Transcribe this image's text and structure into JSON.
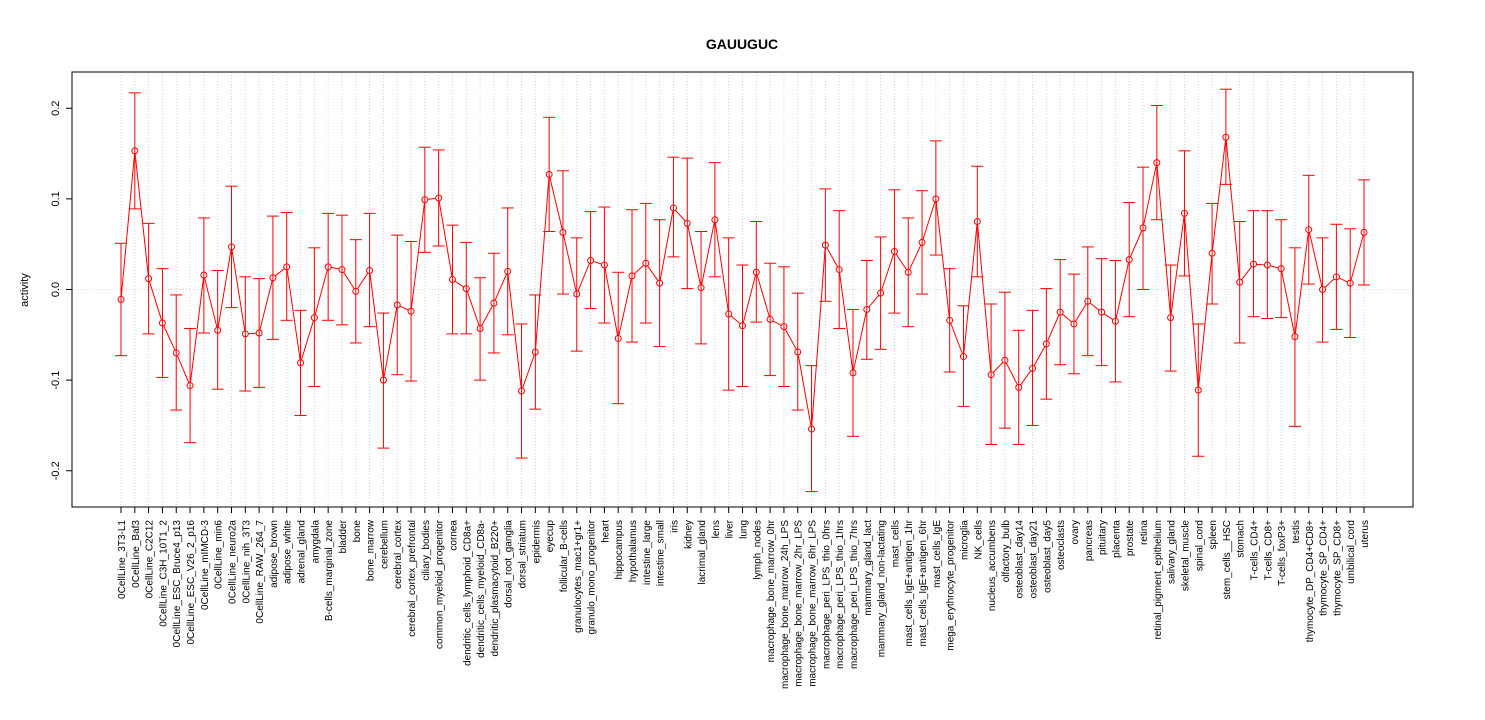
{
  "chart_data": {
    "type": "line",
    "title": "GAUUGUC",
    "xlabel": "",
    "ylabel": "activity",
    "ylim": [
      -0.24,
      0.24
    ],
    "yticks": [
      -0.2,
      -0.1,
      0.0,
      0.1,
      0.2
    ],
    "ytick_labels": [
      "-0.2",
      "-0.1",
      "0.0",
      "0.1",
      "0.2"
    ],
    "grid": "vertical dotted per category, dotted horizontal at zero",
    "colors": {
      "series": "#ff0000",
      "grid": "#cccccc",
      "axis": "#000000"
    },
    "categories": [
      "0CellLine_3T3-L1",
      "0CellLine_Baf3",
      "0CellLine_C2C12",
      "0CellLine_C3H_10T1_2",
      "0CellLine_ESC_Bruce4_p13",
      "0CellLine_ESC_V26_2_p16",
      "0CellLine_mIMCD-3",
      "0CellLine_min6",
      "0CellLine_neuro2a",
      "0CellLine_nih_3T3",
      "0CellLine_RAW_264_7",
      "adipose_brown",
      "adipose_white",
      "adrenal_gland",
      "amygdala",
      "B-cells_marginal_zone",
      "bladder",
      "bone",
      "bone_marrow",
      "cerebellum",
      "cerebral_cortex",
      "cerebral_cortex_prefrontal",
      "ciliary_bodies",
      "common_myeloid_progenitor",
      "cornea",
      "dendritic_cells_lymphoid_CD8a+",
      "dendritic_cells_myeloid_CD8a-",
      "dendritic_plasmacytoid_B220+",
      "dorsal_root_ganglia",
      "dorsal_striatum",
      "epidermis",
      "eyecup",
      "follicular_B-cells",
      "granulocytes_mac1+gr1+",
      "granulo_mono_progenitor",
      "heart",
      "hippocampus",
      "hypothalamus",
      "intestine_large",
      "intestine_small",
      "iris",
      "kidney",
      "lacrimal_gland",
      "lens",
      "liver",
      "lung",
      "lymph_nodes",
      "macrophage_bone_marrow_0hr",
      "macrophage_bone_marrow_24h_LPS",
      "macrophage_bone_marrow_2hr_LPS",
      "macrophage_bone_marrow_6hr_LPS",
      "macrophage_peri_LPS_thio_0hrs",
      "macrophage_peri_LPS_thio_1hrs",
      "macrophage_peri_LPS_thio_7hrs",
      "mammary_gland_lact",
      "mammary_gland_non-lactating",
      "mast_cells",
      "mast_cells_IgE+antigen_1hr",
      "mast_cells_IgE+antigen_6hr",
      "mast_cells_IgE",
      "mega_erythrocyte_progenitor",
      "microglia",
      "NK_cells",
      "nucleus_accumbens",
      "olfactory_bulb",
      "osteoblast_day14",
      "osteoblast_day21",
      "osteoblast_day5",
      "osteoclasts",
      "ovary",
      "pancreas",
      "pituitary",
      "placenta",
      "prostate",
      "retina",
      "retinal_pigment_epithelium",
      "salivary_gland",
      "skeletal_muscle",
      "spinal_cord",
      "spleen",
      "stem_cells__HSC",
      "stomach",
      "T-cells_CD4+",
      "T-cells_CD8+",
      "T-cells_foxP3+",
      "testis",
      "thymocyte_DP_CD4+CD8+",
      "thymocyte_SP_CD4+",
      "thymocyte_SP_CD8+",
      "umbilical_cord",
      "uterus"
    ],
    "series": [
      {
        "name": "activity",
        "values": [
          -0.011,
          0.153,
          0.012,
          -0.037,
          -0.07,
          -0.106,
          0.016,
          -0.045,
          0.047,
          -0.049,
          -0.048,
          0.013,
          0.025,
          -0.081,
          -0.031,
          0.025,
          0.022,
          -0.002,
          0.021,
          -0.1,
          -0.017,
          -0.024,
          0.099,
          0.101,
          0.011,
          0.001,
          -0.043,
          -0.015,
          0.02,
          -0.112,
          -0.069,
          0.127,
          0.063,
          -0.005,
          0.032,
          0.027,
          -0.054,
          0.015,
          0.029,
          0.007,
          0.09,
          0.073,
          0.002,
          0.077,
          -0.027,
          -0.04,
          0.019,
          -0.033,
          -0.041,
          -0.069,
          -0.154,
          0.049,
          0.022,
          -0.092,
          -0.022,
          -0.004,
          0.042,
          0.019,
          0.052,
          0.1,
          -0.034,
          -0.074,
          0.075,
          -0.094,
          -0.078,
          -0.108,
          -0.087,
          -0.06,
          -0.025,
          -0.038,
          -0.013,
          -0.025,
          -0.035,
          0.033,
          0.068,
          0.14,
          -0.031,
          0.084,
          -0.111,
          0.04,
          0.168,
          0.008,
          0.028,
          0.027,
          0.023,
          -0.052,
          0.066,
          0.0,
          0.014,
          0.007,
          0.063
        ],
        "lower": [
          -0.073,
          0.089,
          -0.049,
          -0.097,
          -0.133,
          -0.169,
          -0.048,
          -0.11,
          -0.02,
          -0.112,
          -0.108,
          -0.055,
          -0.034,
          -0.139,
          -0.107,
          -0.034,
          -0.039,
          -0.059,
          -0.041,
          -0.175,
          -0.094,
          -0.101,
          0.041,
          0.048,
          -0.049,
          -0.049,
          -0.1,
          -0.07,
          -0.05,
          -0.186,
          -0.132,
          0.064,
          -0.005,
          -0.068,
          -0.021,
          -0.037,
          -0.126,
          -0.058,
          -0.037,
          -0.063,
          0.036,
          0.001,
          -0.06,
          0.014,
          -0.111,
          -0.107,
          -0.036,
          -0.095,
          -0.107,
          -0.133,
          -0.223,
          -0.013,
          -0.043,
          -0.162,
          -0.077,
          -0.066,
          -0.026,
          -0.041,
          -0.005,
          0.038,
          -0.091,
          -0.129,
          0.014,
          -0.171,
          -0.153,
          -0.171,
          -0.15,
          -0.121,
          -0.083,
          -0.093,
          -0.073,
          -0.084,
          -0.102,
          -0.03,
          0.0,
          0.077,
          -0.09,
          0.015,
          -0.184,
          -0.016,
          0.116,
          -0.059,
          -0.03,
          -0.032,
          -0.031,
          -0.151,
          0.006,
          -0.058,
          -0.044,
          -0.053,
          0.005
        ],
        "upper": [
          0.051,
          0.217,
          0.073,
          0.023,
          -0.006,
          -0.043,
          0.079,
          0.021,
          0.114,
          0.014,
          0.012,
          0.081,
          0.085,
          -0.023,
          0.046,
          0.084,
          0.082,
          0.055,
          0.084,
          -0.026,
          0.06,
          0.053,
          0.157,
          0.154,
          0.071,
          0.052,
          0.013,
          0.04,
          0.09,
          -0.038,
          -0.006,
          0.19,
          0.131,
          0.057,
          0.086,
          0.091,
          0.019,
          0.088,
          0.095,
          0.077,
          0.146,
          0.145,
          0.064,
          0.14,
          0.057,
          0.027,
          0.075,
          0.029,
          0.025,
          -0.004,
          -0.084,
          0.111,
          0.087,
          -0.022,
          0.032,
          0.058,
          0.11,
          0.079,
          0.109,
          0.164,
          0.023,
          -0.018,
          0.136,
          -0.016,
          -0.003,
          -0.045,
          -0.023,
          0.001,
          0.033,
          0.017,
          0.047,
          0.034,
          0.032,
          0.096,
          0.135,
          0.203,
          0.027,
          0.153,
          -0.038,
          0.095,
          0.221,
          0.075,
          0.087,
          0.087,
          0.077,
          0.046,
          0.126,
          0.057,
          0.072,
          0.067,
          0.121
        ]
      }
    ]
  }
}
